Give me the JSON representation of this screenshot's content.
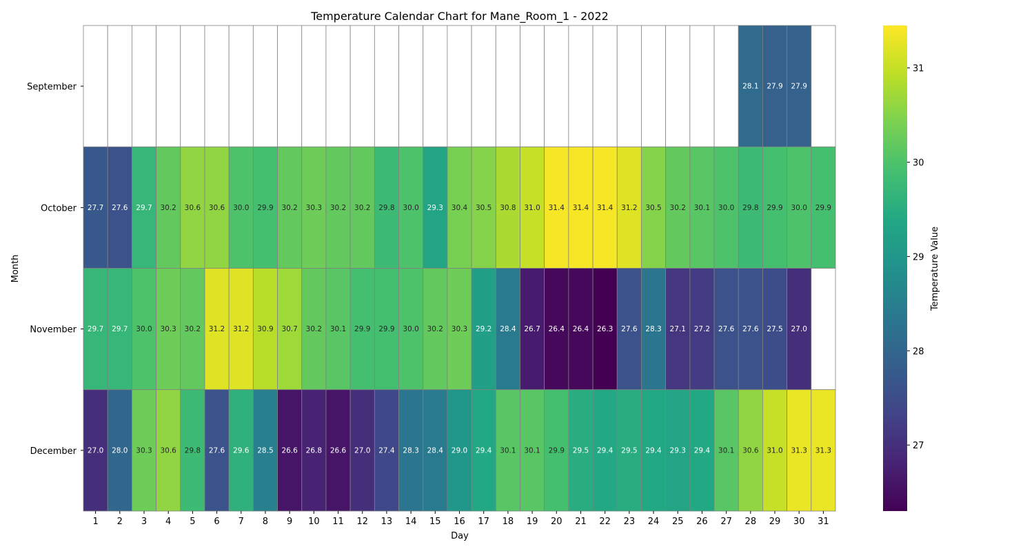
{
  "chart_data": {
    "type": "heatmap",
    "title": "Temperature Calendar Chart for Mane_Room_1 - 2022",
    "xlabel": "Day",
    "ylabel": "Month",
    "colorbar_label": "Temperature Value",
    "colormap": "viridis",
    "vmin": 26.3,
    "vmax": 31.45,
    "colorbar_ticks": [
      27,
      28,
      29,
      30,
      31
    ],
    "x": [
      "1",
      "2",
      "3",
      "4",
      "5",
      "6",
      "7",
      "8",
      "9",
      "10",
      "11",
      "12",
      "13",
      "14",
      "15",
      "16",
      "17",
      "18",
      "19",
      "20",
      "21",
      "22",
      "23",
      "24",
      "25",
      "26",
      "27",
      "28",
      "29",
      "30",
      "31"
    ],
    "y": [
      "September",
      "October",
      "November",
      "December"
    ],
    "values": [
      [
        null,
        null,
        null,
        null,
        null,
        null,
        null,
        null,
        null,
        null,
        null,
        null,
        null,
        null,
        null,
        null,
        null,
        null,
        null,
        null,
        null,
        null,
        null,
        null,
        null,
        null,
        null,
        28.1,
        27.9,
        27.9,
        null
      ],
      [
        27.7,
        27.6,
        29.7,
        30.2,
        30.6,
        30.6,
        30.0,
        29.9,
        30.2,
        30.3,
        30.2,
        30.2,
        29.8,
        30.0,
        29.3,
        30.4,
        30.5,
        30.8,
        31.0,
        31.4,
        31.4,
        31.4,
        31.2,
        30.5,
        30.2,
        30.1,
        30.0,
        29.8,
        29.9,
        30.0,
        29.9
      ],
      [
        29.7,
        29.7,
        30.0,
        30.3,
        30.2,
        31.2,
        31.2,
        30.9,
        30.7,
        30.2,
        30.1,
        29.9,
        29.9,
        30.0,
        30.2,
        30.3,
        29.2,
        28.4,
        26.7,
        26.4,
        26.4,
        26.3,
        27.6,
        28.3,
        27.1,
        27.2,
        27.6,
        27.6,
        27.5,
        27.0,
        null
      ],
      [
        27.0,
        28.0,
        30.3,
        30.6,
        29.8,
        27.6,
        29.6,
        28.5,
        26.6,
        26.8,
        26.6,
        27.0,
        27.4,
        28.3,
        28.4,
        29.0,
        29.4,
        30.1,
        30.1,
        29.9,
        29.5,
        29.4,
        29.5,
        29.4,
        29.3,
        29.4,
        30.1,
        30.6,
        31.0,
        31.3,
        31.3
      ]
    ]
  }
}
